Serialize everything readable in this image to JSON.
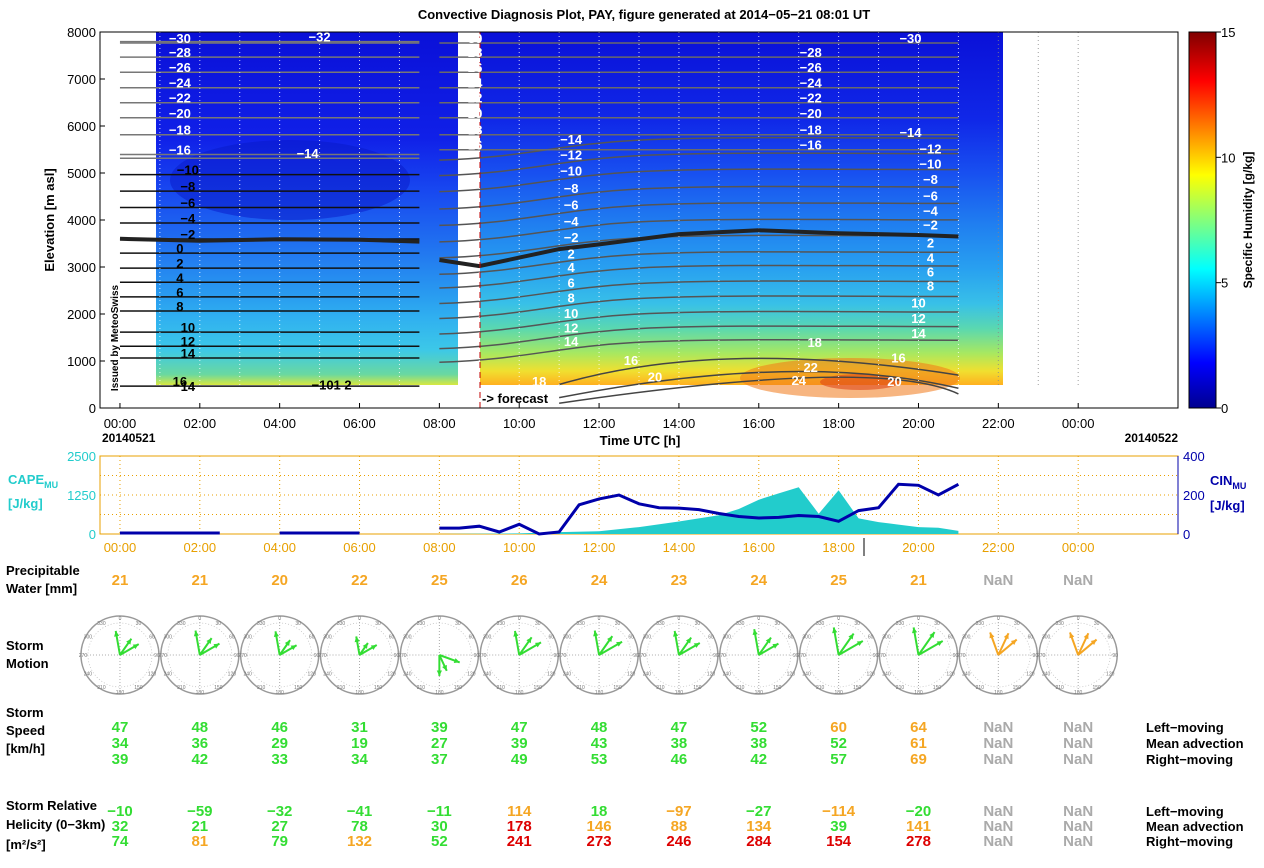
{
  "title": "Convective Diagnosis Plot, PAY, figure generated at 2014−05−21 08:01 UT",
  "colors": {
    "green": "#33dd33",
    "orange": "#f5a623",
    "red": "#dd0000",
    "gray": "#aaaaaa",
    "cape": "#22cccc",
    "cin": "#0000aa",
    "axis_orange": "#e8a000"
  },
  "chart_data": [
    {
      "type": "heatmap",
      "title": "Convective Diagnosis Plot, PAY, figure generated at 2014−05−21 08:01 UT",
      "xlabel": "Time UTC [h]",
      "ylabel": "Elevation [m asl]",
      "colorbar_label": "Specific Humidity [g/kg]",
      "colorbar_ticks": [
        "0",
        "5",
        "10",
        "15"
      ],
      "clim": [
        0,
        15
      ],
      "xlim": [
        -0.5,
        26.5
      ],
      "ylim": [
        0,
        8000
      ],
      "x_ticks": [
        0,
        2,
        4,
        6,
        8,
        10,
        12,
        14,
        16,
        18,
        20,
        22,
        24
      ],
      "x_tick_labels": [
        "00:00",
        "02:00",
        "04:00",
        "06:00",
        "08:00",
        "10:00",
        "12:00",
        "14:00",
        "16:00",
        "18:00",
        "20:00",
        "22:00",
        "00:00"
      ],
      "y_ticks": [
        0,
        1000,
        2000,
        3000,
        4000,
        5000,
        6000,
        7000,
        8000
      ],
      "y_tick_labels": [
        "0",
        "1000",
        "2000",
        "3000",
        "4000",
        "5000",
        "6000",
        "7000",
        "8000"
      ],
      "date_start": "20140521",
      "date_end": "20140522",
      "forecast_label": "-> forecast",
      "forecast_start": 8,
      "issued_by": "Issued by MeteoSwiss",
      "zero_isotherm": [
        {
          "x": 0,
          "y": 3600
        },
        {
          "x": 2,
          "y": 3560
        },
        {
          "x": 4,
          "y": 3590
        },
        {
          "x": 6,
          "y": 3580
        },
        {
          "x": 7.5,
          "y": 3540
        },
        {
          "x": 8,
          "y": 3150
        },
        {
          "x": 9,
          "y": 3020
        },
        {
          "x": 10,
          "y": 3200
        },
        {
          "x": 11,
          "y": 3380
        },
        {
          "x": 12,
          "y": 3480
        },
        {
          "x": 14,
          "y": 3700
        },
        {
          "x": 16,
          "y": 3780
        },
        {
          "x": 18,
          "y": 3720
        },
        {
          "x": 20,
          "y": 3680
        },
        {
          "x": 21,
          "y": 3650
        }
      ],
      "isotherm_labels_obs": [
        {
          "x": 1.5,
          "y": 7850,
          "text": "−30"
        },
        {
          "x": 1.5,
          "y": 7550,
          "text": "−28"
        },
        {
          "x": 1.5,
          "y": 7230,
          "text": "−26"
        },
        {
          "x": 1.5,
          "y": 6900,
          "text": "−24"
        },
        {
          "x": 1.5,
          "y": 6580,
          "text": "−22"
        },
        {
          "x": 1.5,
          "y": 6260,
          "text": "−20"
        },
        {
          "x": 1.5,
          "y": 5900,
          "text": "−18"
        },
        {
          "x": 1.5,
          "y": 5480,
          "text": "−16"
        },
        {
          "x": 5,
          "y": 7880,
          "text": "−32"
        },
        {
          "x": 4.7,
          "y": 5400,
          "text": "−14"
        },
        {
          "x": 1.7,
          "y": 5050,
          "text": "−10"
        },
        {
          "x": 1.7,
          "y": 4700,
          "text": "−8"
        },
        {
          "x": 1.7,
          "y": 4350,
          "text": "−6"
        },
        {
          "x": 1.7,
          "y": 4020,
          "text": "−4"
        },
        {
          "x": 1.7,
          "y": 3680,
          "text": "−2"
        },
        {
          "x": 1.5,
          "y": 3380,
          "text": "0"
        },
        {
          "x": 1.5,
          "y": 3060,
          "text": "2"
        },
        {
          "x": 1.5,
          "y": 2760,
          "text": "4"
        },
        {
          "x": 1.5,
          "y": 2450,
          "text": "6"
        },
        {
          "x": 1.5,
          "y": 2150,
          "text": "8"
        },
        {
          "x": 1.7,
          "y": 1700,
          "text": "10"
        },
        {
          "x": 1.7,
          "y": 1400,
          "text": "12"
        },
        {
          "x": 1.7,
          "y": 1150,
          "text": "14"
        },
        {
          "x": 1.5,
          "y": 550,
          "text": "16"
        },
        {
          "x": 1.7,
          "y": 450,
          "text": "14"
        },
        {
          "x": 5.3,
          "y": 480,
          "text": "−101 2"
        }
      ],
      "isotherm_labels_fcst": [
        {
          "x": 8.8,
          "y": 7850,
          "text": "−30"
        },
        {
          "x": 8.8,
          "y": 7550,
          "text": "−28"
        },
        {
          "x": 8.8,
          "y": 7230,
          "text": "−26"
        },
        {
          "x": 8.8,
          "y": 6900,
          "text": "−24"
        },
        {
          "x": 8.8,
          "y": 6580,
          "text": "−22"
        },
        {
          "x": 8.8,
          "y": 6260,
          "text": "−20"
        },
        {
          "x": 8.8,
          "y": 5900,
          "text": "−18"
        },
        {
          "x": 8.8,
          "y": 5580,
          "text": "−16"
        },
        {
          "x": 11.3,
          "y": 5700,
          "text": "−14"
        },
        {
          "x": 11.3,
          "y": 5370,
          "text": "−12"
        },
        {
          "x": 11.3,
          "y": 5030,
          "text": "−10"
        },
        {
          "x": 11.3,
          "y": 4660,
          "text": "−8"
        },
        {
          "x": 11.3,
          "y": 4310,
          "text": "−6"
        },
        {
          "x": 11.3,
          "y": 3960,
          "text": "−4"
        },
        {
          "x": 11.3,
          "y": 3620,
          "text": "−2"
        },
        {
          "x": 11.3,
          "y": 3270,
          "text": "2"
        },
        {
          "x": 11.3,
          "y": 2980,
          "text": "4"
        },
        {
          "x": 11.3,
          "y": 2650,
          "text": "6"
        },
        {
          "x": 11.3,
          "y": 2330,
          "text": "8"
        },
        {
          "x": 11.3,
          "y": 2000,
          "text": "10"
        },
        {
          "x": 11.3,
          "y": 1690,
          "text": "12"
        },
        {
          "x": 11.3,
          "y": 1400,
          "text": "14"
        },
        {
          "x": 12.8,
          "y": 1000,
          "text": "16"
        },
        {
          "x": 10.5,
          "y": 550,
          "text": "18"
        },
        {
          "x": 13.4,
          "y": 650,
          "text": "20"
        },
        {
          "x": 17.3,
          "y": 7550,
          "text": "−28"
        },
        {
          "x": 17.3,
          "y": 7230,
          "text": "−26"
        },
        {
          "x": 17.3,
          "y": 6900,
          "text": "−24"
        },
        {
          "x": 17.3,
          "y": 6580,
          "text": "−22"
        },
        {
          "x": 17.3,
          "y": 6260,
          "text": "−20"
        },
        {
          "x": 17.3,
          "y": 5900,
          "text": "−18"
        },
        {
          "x": 17.3,
          "y": 5580,
          "text": "−16"
        },
        {
          "x": 19.8,
          "y": 7850,
          "text": "−30"
        },
        {
          "x": 19.8,
          "y": 5850,
          "text": "−14"
        },
        {
          "x": 20.3,
          "y": 5500,
          "text": "−12"
        },
        {
          "x": 20.3,
          "y": 5180,
          "text": "−10"
        },
        {
          "x": 20.3,
          "y": 4850,
          "text": "−8"
        },
        {
          "x": 20.3,
          "y": 4500,
          "text": "−6"
        },
        {
          "x": 20.3,
          "y": 4180,
          "text": "−4"
        },
        {
          "x": 20.3,
          "y": 3880,
          "text": "−2"
        },
        {
          "x": 20.3,
          "y": 3500,
          "text": "2"
        },
        {
          "x": 20.3,
          "y": 3180,
          "text": "4"
        },
        {
          "x": 20.3,
          "y": 2880,
          "text": "6"
        },
        {
          "x": 20.3,
          "y": 2580,
          "text": "8"
        },
        {
          "x": 20,
          "y": 2220,
          "text": "10"
        },
        {
          "x": 20,
          "y": 1890,
          "text": "12"
        },
        {
          "x": 20,
          "y": 1570,
          "text": "14"
        },
        {
          "x": 19.5,
          "y": 1050,
          "text": "16"
        },
        {
          "x": 17.4,
          "y": 1380,
          "text": "18"
        },
        {
          "x": 17.3,
          "y": 850,
          "text": "22"
        },
        {
          "x": 17,
          "y": 570,
          "text": "24"
        },
        {
          "x": 19.4,
          "y": 550,
          "text": "20"
        }
      ]
    },
    {
      "type": "line",
      "xlim": [
        -0.5,
        26.5
      ],
      "ylim_left": [
        0,
        2500
      ],
      "ylim_right": [
        0,
        400
      ],
      "left_label": "CAPE",
      "left_sub": "MU",
      "left_unit": "[J/kg]",
      "right_label": "CIN",
      "right_sub": "MU",
      "right_unit": "[J/kg]",
      "y_ticks_left": [
        "0",
        "1250",
        "2500"
      ],
      "y_ticks_right": [
        "0",
        "200",
        "400"
      ],
      "x_ticks": [
        0,
        2,
        4,
        6,
        8,
        10,
        12,
        14,
        16,
        18,
        20,
        22,
        24
      ],
      "x_tick_labels": [
        "00:00",
        "02:00",
        "04:00",
        "06:00",
        "08:00",
        "10:00",
        "12:00",
        "14:00",
        "16:00",
        "18:00",
        "20:00",
        "22:00",
        "00:00"
      ],
      "cape": [
        {
          "x": 8,
          "y": 0
        },
        {
          "x": 10,
          "y": 20
        },
        {
          "x": 11,
          "y": 60
        },
        {
          "x": 12,
          "y": 90
        },
        {
          "x": 13,
          "y": 220
        },
        {
          "x": 14,
          "y": 400
        },
        {
          "x": 15,
          "y": 600
        },
        {
          "x": 15.5,
          "y": 800
        },
        {
          "x": 16,
          "y": 1100
        },
        {
          "x": 16.5,
          "y": 1300
        },
        {
          "x": 17,
          "y": 1500
        },
        {
          "x": 17.5,
          "y": 650
        },
        {
          "x": 18,
          "y": 1400
        },
        {
          "x": 18.5,
          "y": 500
        },
        {
          "x": 19,
          "y": 380
        },
        {
          "x": 19.5,
          "y": 300
        },
        {
          "x": 20,
          "y": 220
        },
        {
          "x": 20.5,
          "y": 200
        },
        {
          "x": 21,
          "y": 100
        }
      ],
      "cin": [
        {
          "x": 8,
          "y": 30
        },
        {
          "x": 8.5,
          "y": 30
        },
        {
          "x": 9,
          "y": 40
        },
        {
          "x": 9.5,
          "y": 10
        },
        {
          "x": 10,
          "y": 50
        },
        {
          "x": 10.5,
          "y": 0
        },
        {
          "x": 11,
          "y": 10
        },
        {
          "x": 11.5,
          "y": 150
        },
        {
          "x": 12,
          "y": 180
        },
        {
          "x": 12.5,
          "y": 200
        },
        {
          "x": 13,
          "y": 155
        },
        {
          "x": 13.5,
          "y": 135
        },
        {
          "x": 14,
          "y": 133
        },
        {
          "x": 14.5,
          "y": 125
        },
        {
          "x": 15,
          "y": 105
        },
        {
          "x": 15.5,
          "y": 90
        },
        {
          "x": 16,
          "y": 82
        },
        {
          "x": 16.5,
          "y": 85
        },
        {
          "x": 17,
          "y": 95
        },
        {
          "x": 17.5,
          "y": 90
        },
        {
          "x": 18,
          "y": 65
        },
        {
          "x": 18.5,
          "y": 120
        },
        {
          "x": 19,
          "y": 135
        },
        {
          "x": 19.5,
          "y": 255
        },
        {
          "x": 20,
          "y": 250
        },
        {
          "x": 20.5,
          "y": 200
        },
        {
          "x": 21,
          "y": 255
        }
      ],
      "cin_obs_segments": [
        [
          0,
          2.5
        ],
        [
          4,
          6
        ]
      ]
    }
  ],
  "table": {
    "times_x": [
      0,
      2,
      4,
      6,
      8,
      10,
      12,
      14,
      16,
      18,
      20,
      22,
      24
    ],
    "pw": {
      "label_lines": [
        "Precipitable",
        "Water [mm]"
      ],
      "values": [
        "21",
        "21",
        "20",
        "22",
        "25",
        "26",
        "24",
        "23",
        "24",
        "25",
        "21",
        "NaN",
        "NaN"
      ],
      "colors": [
        "orange",
        "orange",
        "orange",
        "orange",
        "orange",
        "orange",
        "orange",
        "orange",
        "orange",
        "orange",
        "orange",
        "gray",
        "gray"
      ]
    },
    "storm_motion": {
      "label_lines": [
        "Storm",
        "Motion"
      ],
      "rose_labels": [
        "0",
        "30",
        "60",
        "90",
        "120",
        "150",
        "180",
        "210",
        "240",
        "270",
        "300",
        "330"
      ],
      "arrow_colors": [
        "green",
        "green",
        "green",
        "green",
        "green",
        "green",
        "green",
        "green",
        "green",
        "green",
        "green",
        "orange",
        "orange"
      ]
    },
    "speed": {
      "label_lines": [
        "Storm",
        "Speed",
        "[km/h]"
      ],
      "row_labels": [
        "Left−moving",
        "Mean advection",
        "Right−moving"
      ],
      "rows": [
        {
          "values": [
            "47",
            "48",
            "46",
            "31",
            "39",
            "47",
            "48",
            "47",
            "52",
            "60",
            "64",
            "NaN",
            "NaN"
          ],
          "colors": [
            "green",
            "green",
            "green",
            "green",
            "green",
            "green",
            "green",
            "green",
            "green",
            "orange",
            "orange",
            "gray",
            "gray"
          ]
        },
        {
          "values": [
            "34",
            "36",
            "29",
            "19",
            "27",
            "39",
            "43",
            "38",
            "38",
            "52",
            "61",
            "NaN",
            "NaN"
          ],
          "colors": [
            "green",
            "green",
            "green",
            "green",
            "green",
            "green",
            "green",
            "green",
            "green",
            "green",
            "orange",
            "gray",
            "gray"
          ]
        },
        {
          "values": [
            "39",
            "42",
            "33",
            "34",
            "37",
            "49",
            "53",
            "46",
            "42",
            "57",
            "69",
            "NaN",
            "NaN"
          ],
          "colors": [
            "green",
            "green",
            "green",
            "green",
            "green",
            "green",
            "green",
            "green",
            "green",
            "green",
            "orange",
            "gray",
            "gray"
          ]
        }
      ]
    },
    "helicity": {
      "label_lines": [
        "Storm Relative",
        "Helicity (0−3km)",
        "[m²/s²]"
      ],
      "row_labels": [
        "Left−moving",
        "Mean advection",
        "Right−moving"
      ],
      "rows": [
        {
          "values": [
            "−10",
            "−59",
            "−32",
            "−41",
            "−11",
            "114",
            "18",
            "−97",
            "−27",
            "−114",
            "−20",
            "NaN",
            "NaN"
          ],
          "colors": [
            "green",
            "green",
            "green",
            "green",
            "green",
            "orange",
            "green",
            "orange",
            "green",
            "orange",
            "green",
            "gray",
            "gray"
          ]
        },
        {
          "values": [
            "32",
            "21",
            "27",
            "78",
            "30",
            "178",
            "146",
            "88",
            "134",
            "39",
            "141",
            "NaN",
            "NaN"
          ],
          "colors": [
            "green",
            "green",
            "green",
            "green",
            "green",
            "red",
            "orange",
            "orange",
            "orange",
            "green",
            "orange",
            "gray",
            "gray"
          ]
        },
        {
          "values": [
            "74",
            "81",
            "79",
            "132",
            "52",
            "241",
            "273",
            "246",
            "284",
            "154",
            "278",
            "NaN",
            "NaN"
          ],
          "colors": [
            "green",
            "orange",
            "green",
            "orange",
            "green",
            "red",
            "red",
            "red",
            "red",
            "red",
            "red",
            "gray",
            "gray"
          ]
        }
      ]
    }
  }
}
